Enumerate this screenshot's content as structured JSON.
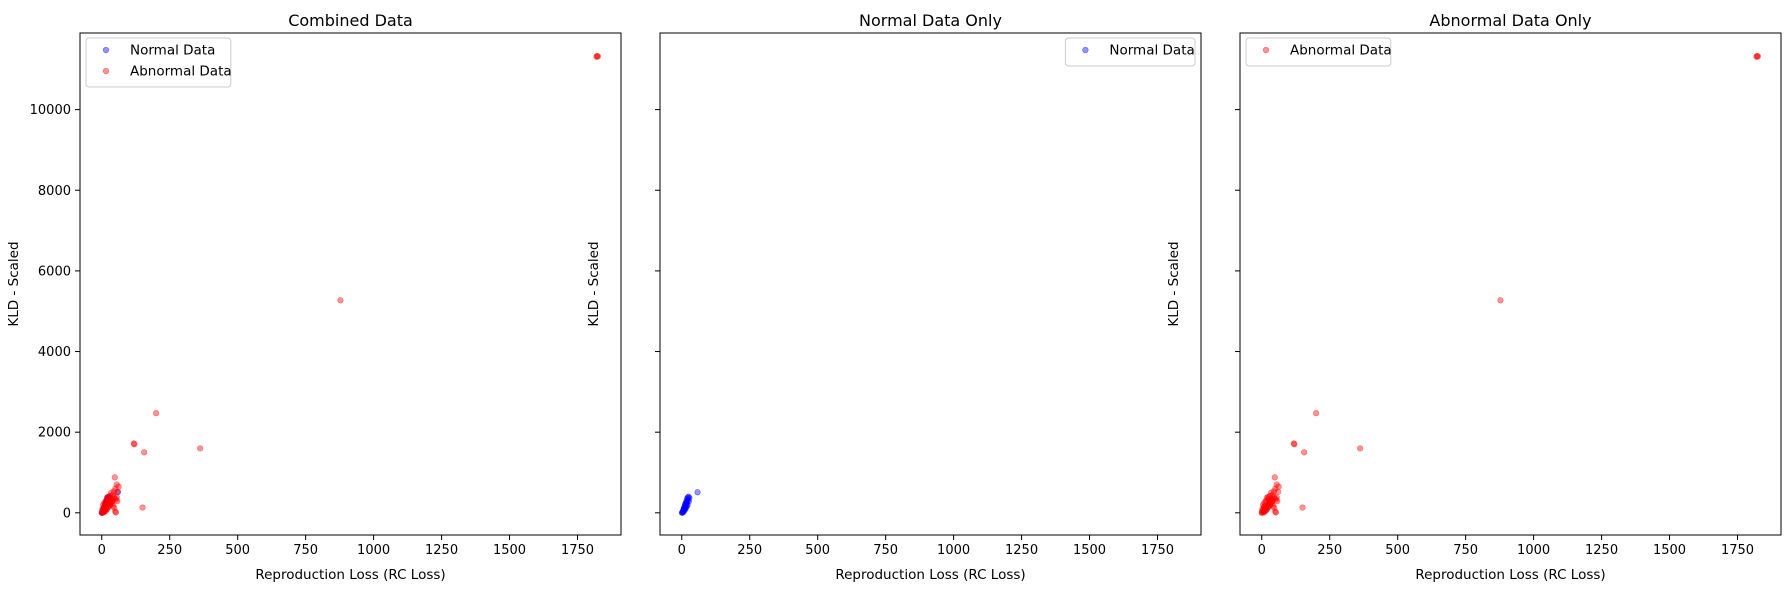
{
  "chart_data": [
    {
      "type": "scatter",
      "title": "Combined Data",
      "xlabel": "Reproduction Loss (RC Loss)",
      "ylabel": "KLD - Scaled",
      "xlim": [
        -80,
        1910
      ],
      "ylim": [
        -550,
        11900
      ],
      "xticks": [
        0,
        250,
        500,
        750,
        1000,
        1250,
        1500,
        1750
      ],
      "yticks": [
        0,
        2000,
        4000,
        6000,
        8000,
        10000
      ],
      "show_ytick_labels": true,
      "grid": false,
      "legend": "top-left",
      "series": [
        {
          "name": "Normal Data",
          "color": "#0000ff",
          "points": [
            [
              2,
              5
            ],
            [
              4,
              30
            ],
            [
              6,
              60
            ],
            [
              8,
              110
            ],
            [
              10,
              150
            ],
            [
              12,
              200
            ],
            [
              14,
              230
            ],
            [
              16,
              260
            ],
            [
              18,
              300
            ],
            [
              20,
              350
            ],
            [
              22,
              380
            ],
            [
              3,
              15
            ],
            [
              5,
              40
            ],
            [
              7,
              80
            ],
            [
              9,
              120
            ],
            [
              11,
              90
            ],
            [
              13,
              170
            ],
            [
              15,
              140
            ],
            [
              17,
              210
            ],
            [
              19,
              250
            ],
            [
              21,
              190
            ],
            [
              24,
              320
            ],
            [
              26,
              280
            ],
            [
              28,
              370
            ],
            [
              1,
              0
            ],
            [
              6,
              20
            ],
            [
              10,
              60
            ],
            [
              14,
              100
            ],
            [
              18,
              160
            ],
            [
              25,
              400
            ],
            [
              58,
              510
            ]
          ]
        },
        {
          "name": "Abnormal Data",
          "color": "#ff0000",
          "points": [
            [
              1825,
              11320
            ],
            [
              1820,
              11310
            ],
            [
              1822,
              11330
            ],
            [
              878,
              5270
            ],
            [
              200,
              2470
            ],
            [
              118,
              1720
            ],
            [
              120,
              1700
            ],
            [
              362,
              1600
            ],
            [
              156,
              1500
            ],
            [
              48,
              880
            ],
            [
              62,
              650
            ],
            [
              50,
              600
            ],
            [
              45,
              530
            ],
            [
              55,
              700
            ],
            [
              35,
              500
            ],
            [
              40,
              450
            ],
            [
              30,
              420
            ],
            [
              25,
              400
            ],
            [
              20,
              380
            ],
            [
              15,
              300
            ],
            [
              10,
              250
            ],
            [
              5,
              200
            ],
            [
              8,
              150
            ],
            [
              3,
              100
            ],
            [
              2,
              60
            ],
            [
              12,
              180
            ],
            [
              18,
              280
            ],
            [
              22,
              350
            ],
            [
              28,
              320
            ],
            [
              33,
              260
            ],
            [
              38,
              220
            ],
            [
              42,
              170
            ],
            [
              46,
              120
            ],
            [
              50,
              30
            ],
            [
              52,
              10
            ],
            [
              55,
              380
            ],
            [
              60,
              520
            ],
            [
              150,
              130
            ],
            [
              4,
              20
            ],
            [
              6,
              40
            ],
            [
              9,
              80
            ],
            [
              14,
              110
            ],
            [
              16,
              140
            ],
            [
              24,
              200
            ],
            [
              27,
              240
            ],
            [
              31,
              300
            ],
            [
              36,
              340
            ],
            [
              44,
              400
            ],
            [
              1,
              5
            ],
            [
              0,
              0
            ],
            [
              7,
              10
            ],
            [
              11,
              30
            ],
            [
              13,
              50
            ],
            [
              17,
              70
            ],
            [
              19,
              90
            ],
            [
              23,
              130
            ],
            [
              26,
              160
            ],
            [
              29,
              190
            ],
            [
              32,
              230
            ],
            [
              37,
              270
            ],
            [
              41,
              310
            ],
            [
              47,
              360
            ],
            [
              53,
              330
            ],
            [
              57,
              290
            ]
          ]
        }
      ]
    },
    {
      "type": "scatter",
      "title": "Normal Data Only",
      "xlabel": "Reproduction Loss (RC Loss)",
      "ylabel": "KLD - Scaled",
      "xlim": [
        -80,
        1910
      ],
      "ylim": [
        -550,
        11900
      ],
      "xticks": [
        0,
        250,
        500,
        750,
        1000,
        1250,
        1500,
        1750
      ],
      "yticks": [
        0,
        2000,
        4000,
        6000,
        8000,
        10000
      ],
      "show_ytick_labels": false,
      "grid": false,
      "legend": "top-right",
      "series": [
        {
          "name": "Normal Data",
          "color": "#0000ff",
          "points": [
            [
              2,
              5
            ],
            [
              4,
              30
            ],
            [
              6,
              60
            ],
            [
              8,
              110
            ],
            [
              10,
              150
            ],
            [
              12,
              200
            ],
            [
              14,
              230
            ],
            [
              16,
              260
            ],
            [
              18,
              300
            ],
            [
              20,
              350
            ],
            [
              22,
              380
            ],
            [
              3,
              15
            ],
            [
              5,
              40
            ],
            [
              7,
              80
            ],
            [
              9,
              120
            ],
            [
              11,
              90
            ],
            [
              13,
              170
            ],
            [
              15,
              140
            ],
            [
              17,
              210
            ],
            [
              19,
              250
            ],
            [
              21,
              190
            ],
            [
              24,
              320
            ],
            [
              26,
              280
            ],
            [
              28,
              370
            ],
            [
              1,
              0
            ],
            [
              6,
              20
            ],
            [
              10,
              60
            ],
            [
              14,
              100
            ],
            [
              18,
              160
            ],
            [
              25,
              400
            ],
            [
              58,
              510
            ]
          ]
        }
      ]
    },
    {
      "type": "scatter",
      "title": "Abnormal Data Only",
      "xlabel": "Reproduction Loss (RC Loss)",
      "ylabel": "KLD - Scaled",
      "xlim": [
        -80,
        1910
      ],
      "ylim": [
        -550,
        11900
      ],
      "xticks": [
        0,
        250,
        500,
        750,
        1000,
        1250,
        1500,
        1750
      ],
      "yticks": [
        0,
        2000,
        4000,
        6000,
        8000,
        10000
      ],
      "show_ytick_labels": false,
      "grid": false,
      "legend": "top-left",
      "series": [
        {
          "name": "Abnormal Data",
          "color": "#ff0000",
          "points": [
            [
              1825,
              11320
            ],
            [
              1820,
              11310
            ],
            [
              1822,
              11330
            ],
            [
              878,
              5270
            ],
            [
              200,
              2470
            ],
            [
              118,
              1720
            ],
            [
              120,
              1700
            ],
            [
              362,
              1600
            ],
            [
              156,
              1500
            ],
            [
              48,
              880
            ],
            [
              62,
              650
            ],
            [
              50,
              600
            ],
            [
              45,
              530
            ],
            [
              55,
              700
            ],
            [
              35,
              500
            ],
            [
              40,
              450
            ],
            [
              30,
              420
            ],
            [
              25,
              400
            ],
            [
              20,
              380
            ],
            [
              15,
              300
            ],
            [
              10,
              250
            ],
            [
              5,
              200
            ],
            [
              8,
              150
            ],
            [
              3,
              100
            ],
            [
              2,
              60
            ],
            [
              12,
              180
            ],
            [
              18,
              280
            ],
            [
              22,
              350
            ],
            [
              28,
              320
            ],
            [
              33,
              260
            ],
            [
              38,
              220
            ],
            [
              42,
              170
            ],
            [
              46,
              120
            ],
            [
              50,
              30
            ],
            [
              52,
              10
            ],
            [
              55,
              380
            ],
            [
              60,
              520
            ],
            [
              150,
              130
            ],
            [
              4,
              20
            ],
            [
              6,
              40
            ],
            [
              9,
              80
            ],
            [
              14,
              110
            ],
            [
              16,
              140
            ],
            [
              24,
              200
            ],
            [
              27,
              240
            ],
            [
              31,
              300
            ],
            [
              36,
              340
            ],
            [
              44,
              400
            ],
            [
              1,
              5
            ],
            [
              0,
              0
            ],
            [
              7,
              10
            ],
            [
              11,
              30
            ],
            [
              13,
              50
            ],
            [
              17,
              70
            ],
            [
              19,
              90
            ],
            [
              23,
              130
            ],
            [
              26,
              160
            ],
            [
              29,
              190
            ],
            [
              32,
              230
            ],
            [
              37,
              270
            ],
            [
              41,
              310
            ],
            [
              47,
              360
            ],
            [
              53,
              330
            ],
            [
              57,
              290
            ]
          ]
        }
      ]
    }
  ]
}
